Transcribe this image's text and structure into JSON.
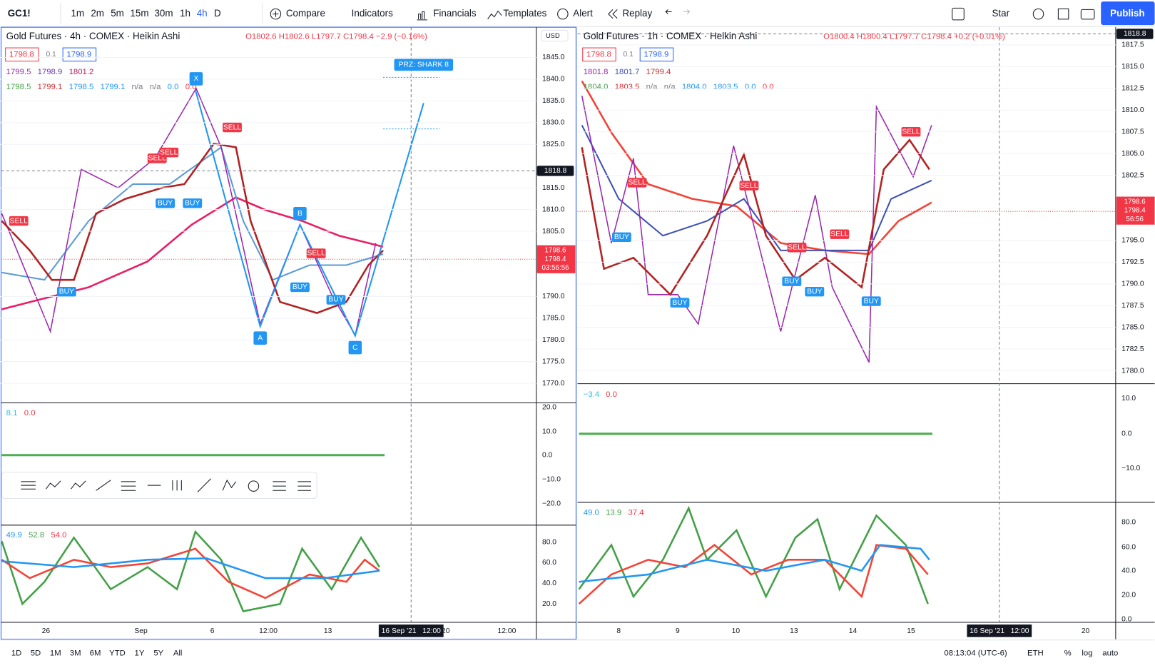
{
  "toolbar": {
    "symbol": "GC1!",
    "intervals": [
      "1m",
      "2m",
      "5m",
      "15m",
      "30m",
      "1h",
      "4h",
      "D"
    ],
    "compare": "Compare",
    "indicators": "Indicators",
    "financials": "Financials",
    "templates": "Templates",
    "alert": "Alert",
    "replay": "Replay",
    "layout": "Star",
    "publish": "Publish"
  },
  "left_chart": {
    "title": "Gold Futures · 4h · COMEX · Heikin Ashi",
    "ohlc": "O1802.6 H1802.6 L1797.7 C1798.4 −2.9 (−0.16%)",
    "bid": "1798.8",
    "step": "0.1",
    "ask": "1798.9",
    "legend_1": [
      "1799.5",
      "1798.9",
      "1801.2"
    ],
    "legend_2": [
      "1798.5",
      "1799.1",
      "1798.5",
      "1799.1",
      "n/a",
      "n/a",
      "0.0",
      "0.0"
    ],
    "currency": "USD",
    "price_axis": [
      "1845.0",
      "1840.0",
      "1835.0",
      "1830.0",
      "1825.0",
      "1815.0",
      "1810.0",
      "1805.0",
      "1790.0",
      "1785.0",
      "1780.0",
      "1775.0",
      "1770.0"
    ],
    "crosshair_price": "1818.8",
    "last_price": [
      "1798.6",
      "1798.4",
      "03:56:56"
    ],
    "pattern_points": [
      "X",
      "A",
      "B",
      "C"
    ],
    "prz": "PRZ: SHARK 8",
    "signals": [
      "SELL",
      "SELL",
      "SELL",
      "BUY",
      "BUY",
      "SELL",
      "BUY",
      "SELL",
      "BUY",
      "BUY"
    ],
    "macd_legend": [
      "8.1",
      "0.0"
    ],
    "macd_axis": [
      "20.0",
      "10.0",
      "0.0",
      "−10.0",
      "−20.0"
    ],
    "rsi_legend": [
      "49.9",
      "52.8",
      "54.0"
    ],
    "rsi_axis": [
      "80.0",
      "60.0",
      "40.0",
      "20.0"
    ],
    "time_axis": [
      "26",
      "Sep",
      "6",
      "12:00",
      "13",
      "20",
      "12:00"
    ],
    "time_cursor": "16 Sep '21   12:00"
  },
  "right_chart": {
    "title": "Gold Futures · 1h · COMEX · Heikin Ashi",
    "ohlc": "O1800.4 H1800.4 L1797.7 C1798.4 +0.2 (+0.01%)",
    "bid": "1798.8",
    "step": "0.1",
    "ask": "1798.9",
    "legend_1": [
      "1801.8",
      "1801.7",
      "1799.4"
    ],
    "legend_2": [
      "1804.0",
      "1803.5",
      "n/a",
      "n/a",
      "1804.0",
      "1803.5",
      "0.0",
      "0.0"
    ],
    "price_axis": [
      "1817.5",
      "1815.0",
      "1812.5",
      "1810.0",
      "1807.5",
      "1805.0",
      "1802.5",
      "1795.0",
      "1792.5",
      "1790.0",
      "1787.5",
      "1785.0",
      "1782.5",
      "1780.0"
    ],
    "crosshair_price": "1818.8",
    "last_price": [
      "1798.6",
      "1798.4",
      "56:56"
    ],
    "signals": [
      "SELL",
      "BUY",
      "SELL",
      "BUY",
      "SELL",
      "SELL",
      "BUY",
      "BUY",
      "BUY",
      "SELL"
    ],
    "macd_legend": [
      "−3.4",
      "0.0"
    ],
    "macd_axis": [
      "10.0",
      "0.0",
      "−10.0"
    ],
    "rsi_legend": [
      "49.0",
      "13.9",
      "37.4"
    ],
    "rsi_axis": [
      "80.0",
      "60.0",
      "40.0",
      "20.0",
      "0.0"
    ],
    "time_axis": [
      "8",
      "9",
      "10",
      "13",
      "14",
      "15",
      "20"
    ],
    "time_cursor": "16 Sep '21   12:00"
  },
  "bottom_bar": {
    "ranges": [
      "1D",
      "5D",
      "1M",
      "3M",
      "6M",
      "YTD",
      "1Y",
      "5Y",
      "All"
    ],
    "clock": "08:13:04 (UTC-6)",
    "session": "ETH",
    "percent": "%",
    "log": "log",
    "auto": "auto"
  }
}
